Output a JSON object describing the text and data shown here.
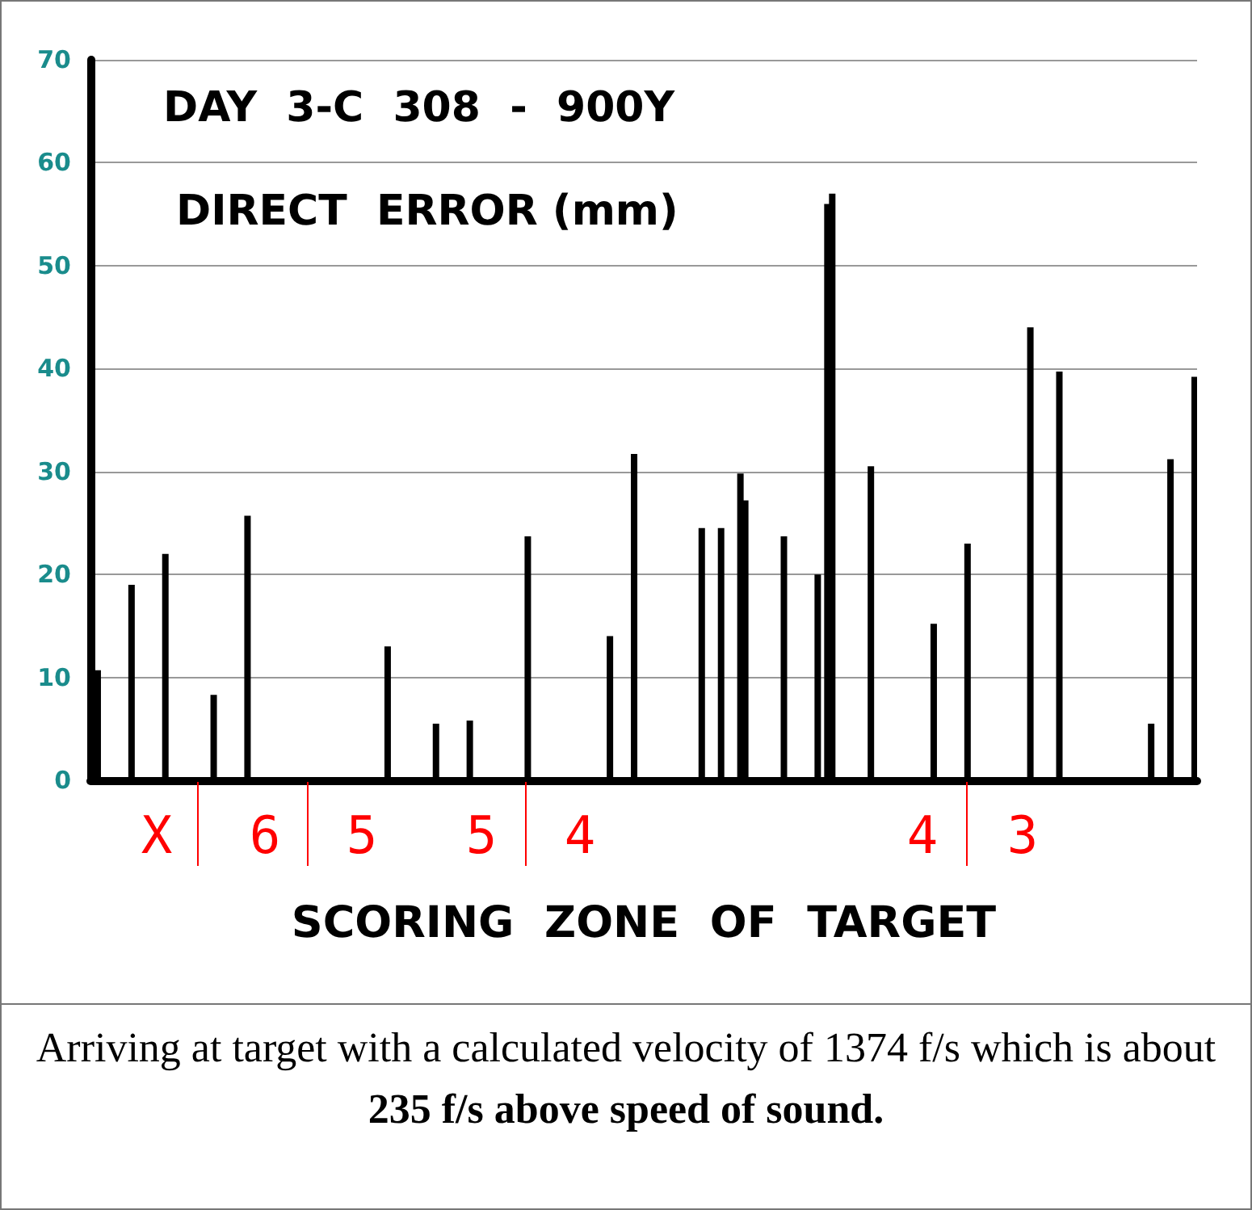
{
  "chart_data": {
    "type": "bar",
    "title": "DAY  3-C  308  -  900Y",
    "subtitle": "DIRECT  ERROR (mm)",
    "xlabel": "SCORING  ZONE  OF  TARGET",
    "annotations": [
      "X",
      "6",
      "5",
      "5",
      "4",
      "4",
      "3",
      "Arriving at target  with a calculated velocity of 1374 f/s which is about",
      "235 f/s  above speed of sound."
    ],
    "categories": [
      null,
      null,
      null,
      null,
      null,
      null,
      null,
      null,
      null,
      null,
      null,
      null,
      null,
      null,
      null,
      null,
      null,
      null,
      null,
      null,
      null,
      null,
      null,
      null,
      null,
      null,
      null,
      null,
      null,
      null,
      null,
      null,
      null,
      null,
      null,
      null,
      null,
      null,
      null,
      null,
      null,
      null,
      null,
      null,
      null,
      null,
      null,
      null,
      null,
      null,
      null,
      null,
      null,
      null,
      null,
      null,
      null,
      null,
      null,
      null,
      null,
      null,
      null,
      null,
      null,
      null,
      null,
      null,
      null,
      null,
      null,
      null,
      null,
      null,
      null,
      null,
      null,
      null,
      null,
      null,
      null,
      null,
      null,
      null,
      null,
      null,
      null,
      null,
      null,
      null,
      null,
      null,
      null,
      null,
      null,
      null,
      null,
      null,
      null,
      null,
      null,
      null,
      null,
      null,
      null,
      null,
      null,
      null,
      null,
      null,
      null,
      null,
      null,
      null,
      null,
      null,
      null,
      null,
      null,
      null,
      null,
      null,
      null,
      null,
      null,
      null,
      null,
      null,
      null,
      null,
      null,
      null,
      null,
      null,
      null,
      null,
      null,
      null,
      null,
      null,
      null,
      null,
      null,
      null,
      null,
      null,
      null,
      null,
      null,
      null,
      null,
      null,
      null,
      null,
      null,
      null,
      null,
      null,
      null,
      null,
      null,
      null,
      null,
      null,
      null,
      null,
      null,
      null,
      null,
      null,
      null,
      null,
      null,
      null,
      null,
      null,
      null,
      null,
      null,
      null,
      null,
      null,
      null,
      null,
      null,
      null,
      null,
      null,
      null,
      null,
      null,
      null,
      null,
      null,
      null,
      null,
      null,
      null,
      null,
      null,
      null,
      null,
      null,
      null,
      null,
      null,
      null,
      null,
      null,
      null,
      null,
      null,
      null,
      null,
      null,
      null,
      null,
      null,
      null,
      null,
      null,
      null,
      null,
      null,
      null,
      null,
      null,
      null,
      null
    ],
    "values": [
      null,
      10.7,
      null,
      null,
      null,
      null,
      null,
      null,
      19,
      null,
      null,
      null,
      null,
      null,
      null,
      22,
      null,
      null,
      null,
      null,
      null,
      null,
      null,
      null,
      null,
      8.3,
      null,
      null,
      null,
      null,
      null,
      null,
      25.7,
      null,
      null,
      null,
      null,
      null,
      null,
      null,
      null,
      null,
      null,
      null,
      null,
      null,
      null,
      null,
      null,
      null,
      null,
      null,
      null,
      null,
      null,
      null,
      null,
      null,
      null,
      null,
      null,
      13,
      null,
      null,
      null,
      null,
      null,
      null,
      null,
      null,
      null,
      5.5,
      null,
      null,
      null,
      null,
      null,
      null,
      5.8,
      null,
      null,
      null,
      null,
      null,
      null,
      null,
      null,
      null,
      null,
      null,
      23.7,
      null,
      null,
      null,
      null,
      null,
      null,
      null,
      null,
      null,
      null,
      null,
      null,
      null,
      null,
      null,
      null,
      14,
      null,
      null,
      null,
      null,
      31.7,
      null,
      null,
      null,
      null,
      null,
      null,
      null,
      null,
      null,
      null,
      null,
      null,
      null,
      24.5,
      null,
      null,
      null,
      24.5,
      null,
      null,
      null,
      29.8,
      27.2,
      null,
      null,
      null,
      null,
      null,
      null,
      null,
      23.7,
      null,
      null,
      null,
      null,
      null,
      null,
      20,
      null,
      56,
      57,
      null,
      null,
      null,
      null,
      null,
      null,
      null,
      30.5,
      null,
      null,
      null,
      null,
      null,
      null,
      null,
      null,
      null,
      null,
      null,
      null,
      15.2,
      null,
      null,
      null,
      null,
      null,
      null,
      23,
      null,
      null,
      null,
      null,
      null,
      null,
      null,
      null,
      null,
      null,
      null,
      null,
      44,
      null,
      null,
      null,
      null,
      null,
      39.7,
      null,
      null,
      null,
      null,
      null,
      null,
      null,
      null,
      null,
      null,
      null,
      null,
      null,
      null,
      null,
      null,
      null,
      null,
      5.5,
      null,
      null,
      null,
      31.2,
      null,
      null,
      null,
      null,
      39.2
    ],
    "color": "#000000",
    "ylim": [
      0,
      70
    ],
    "yticks": [
      0,
      10,
      20,
      30,
      40,
      50,
      60,
      70
    ],
    "grid": "y"
  }
}
